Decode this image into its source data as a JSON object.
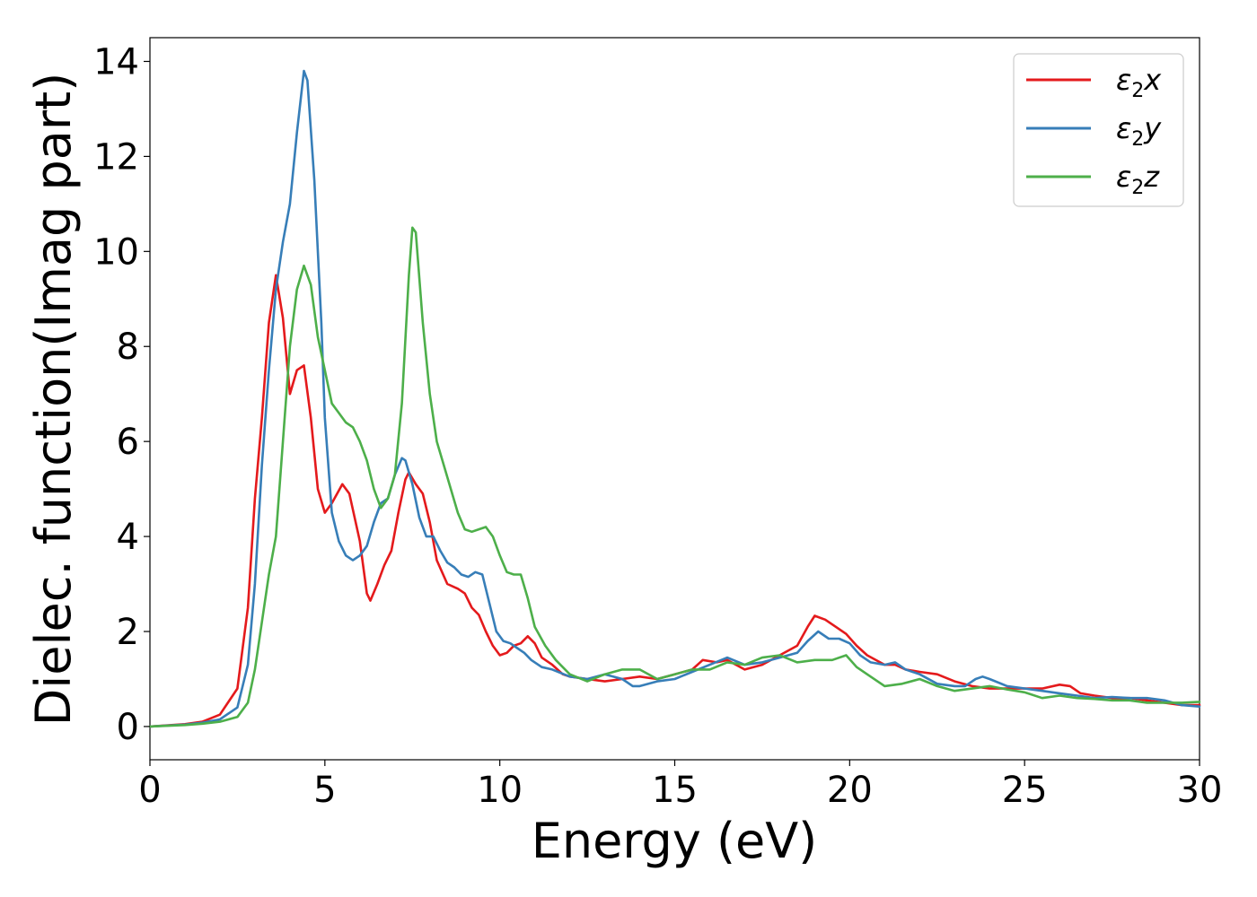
{
  "chart_data": {
    "type": "line",
    "title": "",
    "xlabel": "Energy (eV)",
    "ylabel": "Dielec. function(Imag part)",
    "xlim": [
      0,
      30
    ],
    "ylim": [
      -0.7,
      14.5
    ],
    "xticks": [
      0,
      5,
      10,
      15,
      20,
      25,
      30
    ],
    "yticks": [
      0,
      2,
      4,
      6,
      8,
      10,
      12,
      14
    ],
    "grid": false,
    "legend_position": "top-right",
    "series": [
      {
        "name": "ε₂x",
        "legend_base": "ε",
        "legend_sub": "2",
        "legend_var": "x",
        "color": "#e41a1c",
        "points": [
          [
            0,
            0
          ],
          [
            1,
            0.05
          ],
          [
            1.5,
            0.1
          ],
          [
            2,
            0.25
          ],
          [
            2.5,
            0.8
          ],
          [
            2.8,
            2.5
          ],
          [
            3.0,
            4.8
          ],
          [
            3.2,
            6.5
          ],
          [
            3.4,
            8.5
          ],
          [
            3.6,
            9.5
          ],
          [
            3.8,
            8.6
          ],
          [
            4.0,
            7.0
          ],
          [
            4.2,
            7.5
          ],
          [
            4.4,
            7.6
          ],
          [
            4.6,
            6.5
          ],
          [
            4.8,
            5.0
          ],
          [
            5.0,
            4.5
          ],
          [
            5.2,
            4.7
          ],
          [
            5.5,
            5.1
          ],
          [
            5.7,
            4.9
          ],
          [
            6.0,
            3.9
          ],
          [
            6.2,
            2.8
          ],
          [
            6.3,
            2.65
          ],
          [
            6.5,
            3.0
          ],
          [
            6.7,
            3.4
          ],
          [
            6.9,
            3.7
          ],
          [
            7.1,
            4.5
          ],
          [
            7.3,
            5.2
          ],
          [
            7.4,
            5.35
          ],
          [
            7.6,
            5.1
          ],
          [
            7.8,
            4.9
          ],
          [
            8.0,
            4.3
          ],
          [
            8.2,
            3.5
          ],
          [
            8.5,
            3.0
          ],
          [
            8.8,
            2.9
          ],
          [
            9.0,
            2.8
          ],
          [
            9.2,
            2.5
          ],
          [
            9.4,
            2.35
          ],
          [
            9.6,
            2.0
          ],
          [
            9.8,
            1.7
          ],
          [
            10.0,
            1.5
          ],
          [
            10.2,
            1.55
          ],
          [
            10.4,
            1.7
          ],
          [
            10.6,
            1.75
          ],
          [
            10.8,
            1.9
          ],
          [
            11.0,
            1.75
          ],
          [
            11.2,
            1.45
          ],
          [
            11.5,
            1.3
          ],
          [
            11.8,
            1.1
          ],
          [
            12.0,
            1.05
          ],
          [
            12.5,
            1.0
          ],
          [
            13,
            0.95
          ],
          [
            13.5,
            1.0
          ],
          [
            14,
            1.05
          ],
          [
            14.5,
            1.0
          ],
          [
            15,
            1.1
          ],
          [
            15.5,
            1.2
          ],
          [
            15.8,
            1.4
          ],
          [
            16.2,
            1.35
          ],
          [
            16.5,
            1.4
          ],
          [
            17,
            1.2
          ],
          [
            17.5,
            1.3
          ],
          [
            18,
            1.5
          ],
          [
            18.5,
            1.7
          ],
          [
            18.8,
            2.1
          ],
          [
            19.0,
            2.33
          ],
          [
            19.3,
            2.25
          ],
          [
            19.6,
            2.1
          ],
          [
            19.9,
            1.95
          ],
          [
            20.2,
            1.7
          ],
          [
            20.5,
            1.5
          ],
          [
            21,
            1.3
          ],
          [
            21.3,
            1.3
          ],
          [
            21.6,
            1.2
          ],
          [
            22,
            1.15
          ],
          [
            22.5,
            1.1
          ],
          [
            23,
            0.95
          ],
          [
            23.5,
            0.85
          ],
          [
            24,
            0.8
          ],
          [
            24.5,
            0.8
          ],
          [
            25,
            0.8
          ],
          [
            25.5,
            0.8
          ],
          [
            26,
            0.88
          ],
          [
            26.3,
            0.85
          ],
          [
            26.6,
            0.7
          ],
          [
            27,
            0.65
          ],
          [
            27.5,
            0.6
          ],
          [
            28,
            0.6
          ],
          [
            28.5,
            0.55
          ],
          [
            29,
            0.5
          ],
          [
            29.5,
            0.45
          ],
          [
            30,
            0.45
          ]
        ]
      },
      {
        "name": "ε₂y",
        "legend_base": "ε",
        "legend_sub": "2",
        "legend_var": "y",
        "color": "#377eb8",
        "points": [
          [
            0,
            0
          ],
          [
            1,
            0.04
          ],
          [
            1.5,
            0.08
          ],
          [
            2,
            0.15
          ],
          [
            2.5,
            0.4
          ],
          [
            2.8,
            1.3
          ],
          [
            3.0,
            3.0
          ],
          [
            3.2,
            5.5
          ],
          [
            3.4,
            7.5
          ],
          [
            3.6,
            9.2
          ],
          [
            3.8,
            10.2
          ],
          [
            4.0,
            11.0
          ],
          [
            4.2,
            12.5
          ],
          [
            4.4,
            13.8
          ],
          [
            4.5,
            13.6
          ],
          [
            4.7,
            11.5
          ],
          [
            4.9,
            8.5
          ],
          [
            5.0,
            6.5
          ],
          [
            5.2,
            4.5
          ],
          [
            5.4,
            3.9
          ],
          [
            5.6,
            3.6
          ],
          [
            5.8,
            3.5
          ],
          [
            6.0,
            3.6
          ],
          [
            6.2,
            3.8
          ],
          [
            6.4,
            4.3
          ],
          [
            6.6,
            4.7
          ],
          [
            6.8,
            4.8
          ],
          [
            7.0,
            5.3
          ],
          [
            7.2,
            5.65
          ],
          [
            7.3,
            5.6
          ],
          [
            7.5,
            5.1
          ],
          [
            7.7,
            4.4
          ],
          [
            7.9,
            4.0
          ],
          [
            8.1,
            4.0
          ],
          [
            8.3,
            3.7
          ],
          [
            8.5,
            3.45
          ],
          [
            8.7,
            3.35
          ],
          [
            8.9,
            3.2
          ],
          [
            9.1,
            3.15
          ],
          [
            9.3,
            3.25
          ],
          [
            9.5,
            3.2
          ],
          [
            9.7,
            2.6
          ],
          [
            9.9,
            2.0
          ],
          [
            10.1,
            1.8
          ],
          [
            10.3,
            1.75
          ],
          [
            10.5,
            1.65
          ],
          [
            10.7,
            1.55
          ],
          [
            10.9,
            1.4
          ],
          [
            11.2,
            1.25
          ],
          [
            11.5,
            1.2
          ],
          [
            12,
            1.05
          ],
          [
            12.5,
            1.0
          ],
          [
            13,
            1.1
          ],
          [
            13.5,
            1.0
          ],
          [
            13.8,
            0.85
          ],
          [
            14,
            0.85
          ],
          [
            14.5,
            0.95
          ],
          [
            15,
            1.0
          ],
          [
            15.5,
            1.15
          ],
          [
            16,
            1.3
          ],
          [
            16.5,
            1.45
          ],
          [
            17,
            1.3
          ],
          [
            17.5,
            1.35
          ],
          [
            18,
            1.45
          ],
          [
            18.5,
            1.55
          ],
          [
            18.8,
            1.8
          ],
          [
            19.1,
            2.0
          ],
          [
            19.4,
            1.85
          ],
          [
            19.7,
            1.85
          ],
          [
            20,
            1.75
          ],
          [
            20.3,
            1.5
          ],
          [
            20.6,
            1.35
          ],
          [
            21,
            1.3
          ],
          [
            21.3,
            1.35
          ],
          [
            21.6,
            1.2
          ],
          [
            22,
            1.1
          ],
          [
            22.5,
            0.9
          ],
          [
            23,
            0.85
          ],
          [
            23.3,
            0.85
          ],
          [
            23.6,
            1.0
          ],
          [
            23.8,
            1.05
          ],
          [
            24,
            1.0
          ],
          [
            24.5,
            0.85
          ],
          [
            25,
            0.8
          ],
          [
            25.5,
            0.75
          ],
          [
            26,
            0.7
          ],
          [
            26.5,
            0.65
          ],
          [
            27,
            0.6
          ],
          [
            27.5,
            0.62
          ],
          [
            28,
            0.6
          ],
          [
            28.5,
            0.6
          ],
          [
            29,
            0.55
          ],
          [
            29.5,
            0.45
          ],
          [
            30,
            0.42
          ]
        ]
      },
      {
        "name": "ε₂z",
        "legend_base": "ε",
        "legend_sub": "2",
        "legend_var": "z",
        "color": "#4daf4a",
        "points": [
          [
            0,
            0
          ],
          [
            1,
            0.03
          ],
          [
            1.5,
            0.06
          ],
          [
            2,
            0.1
          ],
          [
            2.5,
            0.2
          ],
          [
            2.8,
            0.5
          ],
          [
            3.0,
            1.2
          ],
          [
            3.2,
            2.2
          ],
          [
            3.4,
            3.2
          ],
          [
            3.6,
            4.0
          ],
          [
            3.8,
            6.0
          ],
          [
            4.0,
            8.0
          ],
          [
            4.2,
            9.2
          ],
          [
            4.4,
            9.7
          ],
          [
            4.6,
            9.3
          ],
          [
            4.8,
            8.2
          ],
          [
            5.0,
            7.5
          ],
          [
            5.2,
            6.8
          ],
          [
            5.4,
            6.6
          ],
          [
            5.6,
            6.4
          ],
          [
            5.8,
            6.3
          ],
          [
            6.0,
            6.0
          ],
          [
            6.2,
            5.6
          ],
          [
            6.4,
            5.0
          ],
          [
            6.6,
            4.6
          ],
          [
            6.8,
            4.8
          ],
          [
            7.0,
            5.3
          ],
          [
            7.2,
            6.8
          ],
          [
            7.4,
            9.5
          ],
          [
            7.5,
            10.5
          ],
          [
            7.6,
            10.4
          ],
          [
            7.8,
            8.5
          ],
          [
            8.0,
            7.0
          ],
          [
            8.2,
            6.0
          ],
          [
            8.4,
            5.5
          ],
          [
            8.6,
            5.0
          ],
          [
            8.8,
            4.5
          ],
          [
            9.0,
            4.15
          ],
          [
            9.2,
            4.1
          ],
          [
            9.4,
            4.15
          ],
          [
            9.6,
            4.2
          ],
          [
            9.8,
            4.0
          ],
          [
            10.0,
            3.6
          ],
          [
            10.2,
            3.25
          ],
          [
            10.4,
            3.2
          ],
          [
            10.6,
            3.2
          ],
          [
            10.8,
            2.7
          ],
          [
            11.0,
            2.1
          ],
          [
            11.3,
            1.7
          ],
          [
            11.6,
            1.4
          ],
          [
            12,
            1.1
          ],
          [
            12.5,
            0.95
          ],
          [
            13,
            1.1
          ],
          [
            13.5,
            1.2
          ],
          [
            14,
            1.2
          ],
          [
            14.5,
            1.0
          ],
          [
            15,
            1.1
          ],
          [
            15.5,
            1.2
          ],
          [
            16,
            1.2
          ],
          [
            16.5,
            1.35
          ],
          [
            17,
            1.3
          ],
          [
            17.5,
            1.45
          ],
          [
            18,
            1.5
          ],
          [
            18.5,
            1.35
          ],
          [
            19,
            1.4
          ],
          [
            19.5,
            1.4
          ],
          [
            19.9,
            1.5
          ],
          [
            20.2,
            1.25
          ],
          [
            20.5,
            1.1
          ],
          [
            21,
            0.85
          ],
          [
            21.5,
            0.9
          ],
          [
            22,
            1.0
          ],
          [
            22.5,
            0.85
          ],
          [
            23,
            0.75
          ],
          [
            23.5,
            0.8
          ],
          [
            24,
            0.85
          ],
          [
            24.5,
            0.78
          ],
          [
            25,
            0.72
          ],
          [
            25.5,
            0.6
          ],
          [
            26,
            0.65
          ],
          [
            26.5,
            0.6
          ],
          [
            27,
            0.58
          ],
          [
            27.5,
            0.55
          ],
          [
            28,
            0.55
          ],
          [
            28.5,
            0.5
          ],
          [
            29,
            0.5
          ],
          [
            29.5,
            0.5
          ],
          [
            30,
            0.52
          ]
        ]
      }
    ]
  }
}
